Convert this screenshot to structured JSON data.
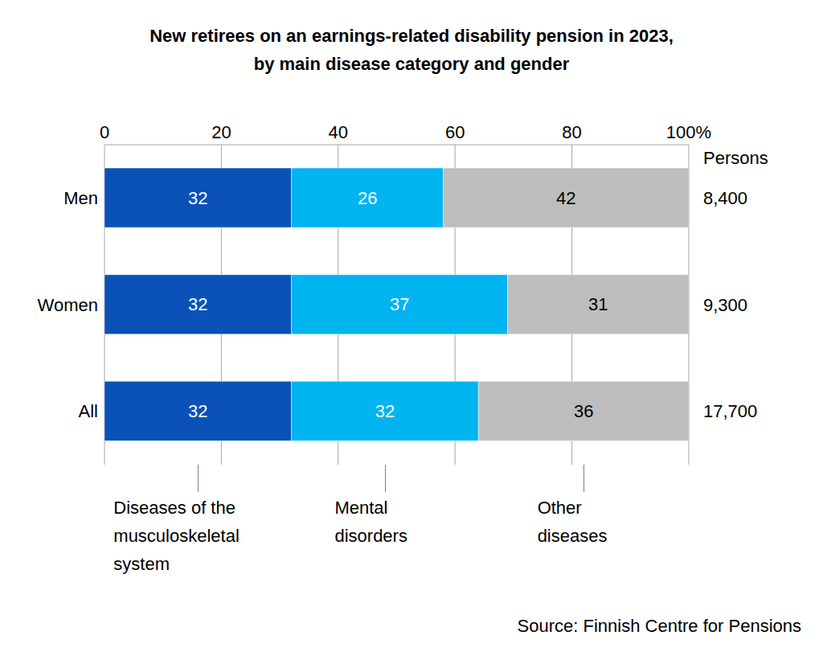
{
  "chart_data": {
    "type": "bar",
    "orientation": "horizontal",
    "stacked": true,
    "title": "New retirees on an earnings-related disability pension in 2023, by main disease category and gender",
    "categories": [
      "Men",
      "Women",
      "All"
    ],
    "series": [
      {
        "name": "Diseases of the musculoskeletal system",
        "color": "#0a52b8",
        "values": [
          32,
          32,
          32
        ]
      },
      {
        "name": "Mental disorders",
        "color": "#00b4f0",
        "values": [
          26,
          37,
          32
        ]
      },
      {
        "name": "Other diseases",
        "color": "#bdbdbd",
        "values": [
          42,
          31,
          36
        ]
      }
    ],
    "xlim": [
      0,
      100
    ],
    "xticks": [
      0,
      20,
      40,
      60,
      80,
      {
        "value": 100,
        "label": "100%"
      }
    ],
    "grid": true,
    "data_labels": true,
    "persons_title": "Persons",
    "persons": [
      8400,
      9300,
      17700
    ],
    "persons_labels": [
      "8,400",
      "9,300",
      "17,700"
    ],
    "source": "Source: Finnish Centre for Pensions"
  }
}
